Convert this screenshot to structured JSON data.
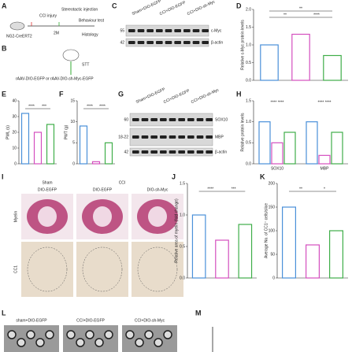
{
  "panels": [
    "A",
    "B",
    "C",
    "D",
    "E",
    "F",
    "G",
    "H",
    "I",
    "J",
    "K",
    "L",
    "M"
  ],
  "a": {
    "cci": "CCI injury",
    "inject": "Stereotactic injection",
    "mouse": "NG2-CreERT2",
    "time": "2M",
    "behav": "Behaviour test",
    "histo": "Histology"
  },
  "b": {
    "stt": "STT",
    "virus": "rAAV-DIO-EGFP or rAAV-DIO-sh-Myc-EGFP"
  },
  "c": {
    "lanes": [
      "Sham+DIO-EGFP",
      "CCI+DIO-EGFP",
      "CCI+DIO-sh-Myc"
    ],
    "markers": [
      "55",
      "42"
    ],
    "bands": [
      "c-Myc",
      "β-actin"
    ]
  },
  "g": {
    "lanes": [
      "Sham+DIO-EGFP",
      "CCI+DIO-EGFP",
      "CCI+DIO-sh-Myc"
    ],
    "markers": [
      "60",
      "18-22",
      "42"
    ],
    "bands": [
      "SOX10",
      "MBP",
      "β-actin"
    ]
  },
  "i": {
    "groups": [
      "Sham",
      "CCI"
    ],
    "cols": [
      "DIO-EGFP",
      "DIO-EGFP",
      "DIO-sh-Myc"
    ],
    "rows": [
      "Myelin",
      "CC1"
    ]
  },
  "l": {
    "cols": [
      "sham+DIO-EGFP",
      "CCI+DIO-EGFP",
      "CCI+DIO-sh-Myc"
    ]
  },
  "charts": [
    {
      "type": "bar",
      "ylabel": "Relative c-Myc protein levels",
      "ylim": [
        0,
        2
      ],
      "yticks": [
        {
          "value": 0,
          "label": "0.0"
        },
        {
          "value": 0.5,
          "label": "0.5"
        },
        {
          "value": 1,
          "label": "1.0"
        },
        {
          "value": 1.5,
          "label": "1.5"
        },
        {
          "value": 2,
          "label": "2.0"
        }
      ],
      "values": [
        1.0,
        1.3,
        0.7
      ],
      "colors": [
        "#4a90d9",
        "#d44fbf",
        "#3fae49"
      ],
      "sig": [
        {
          "text": "**",
          "from": 0,
          "to": 2
        },
        {
          "text": "**",
          "from": 0,
          "to": 1
        },
        {
          "text": "****",
          "from": 1,
          "to": 2
        }
      ]
    },
    {
      "type": "bar",
      "ylabel": "PWL (s)",
      "ylim": [
        0,
        40
      ],
      "yticks": [
        0,
        10,
        20,
        30,
        40
      ],
      "values": [
        32,
        20,
        25
      ],
      "colors": [
        "#4a90d9",
        "#d44fbf",
        "#3fae49"
      ],
      "sig": [
        {
          "text": "****",
          "from": 0,
          "to": 1
        },
        {
          "text": "***",
          "from": 1,
          "to": 2
        }
      ]
    },
    {
      "type": "bar",
      "ylabel": "PWT (g)",
      "ylim": [
        0,
        15
      ],
      "yticks": [
        0,
        5,
        10,
        15
      ],
      "values": [
        9,
        0.5,
        5
      ],
      "colors": [
        "#4a90d9",
        "#d44fbf",
        "#3fae49"
      ],
      "sig": [
        {
          "text": "****",
          "from": 0,
          "to": 1
        },
        {
          "text": "****",
          "from": 1,
          "to": 2
        }
      ]
    },
    {
      "type": "grouped",
      "ylabel": "Relative protein levels",
      "ylim": [
        0,
        1.5
      ],
      "yticks": [
        {
          "value": 0,
          "label": "0.0"
        },
        {
          "value": 0.5,
          "label": "0.5"
        },
        {
          "value": 1,
          "label": "1.0"
        },
        {
          "value": 1.5,
          "label": "1.5"
        }
      ],
      "categories": [
        "SOX10",
        "MBP"
      ],
      "series": [
        {
          "color": "#4a90d9",
          "values": [
            1.0,
            1.0
          ]
        },
        {
          "color": "#d44fbf",
          "values": [
            0.5,
            0.2
          ]
        },
        {
          "color": "#3fae49",
          "values": [
            0.75,
            0.75
          ]
        }
      ],
      "sig": [
        "**** ****",
        "**** ****"
      ]
    },
    {
      "type": "bar",
      "ylabel": "Relative area of myelin (fold change)",
      "ylim": [
        0,
        1.5
      ],
      "yticks": [
        {
          "value": 0,
          "label": "0.0"
        },
        {
          "value": 0.5,
          "label": "0.5"
        },
        {
          "value": 1,
          "label": "1.0"
        },
        {
          "value": 1.5,
          "label": "1.5"
        }
      ],
      "values": [
        1.0,
        0.6,
        0.85
      ],
      "colors": [
        "#4a90d9",
        "#d44fbf",
        "#3fae49"
      ],
      "sig": [
        {
          "text": "****",
          "from": 0,
          "to": 1
        },
        {
          "text": "***",
          "from": 1,
          "to": 2
        }
      ]
    },
    {
      "type": "bar",
      "ylabel": "Average No. of CC1⁺ cells/slice",
      "ylim": [
        0,
        200
      ],
      "yticks": [
        0,
        50,
        100,
        150,
        200
      ],
      "values": [
        150,
        70,
        100
      ],
      "colors": [
        "#4a90d9",
        "#d44fbf",
        "#3fae49"
      ],
      "sig": [
        {
          "text": "**",
          "from": 0,
          "to": 1
        },
        {
          "text": "*",
          "from": 1,
          "to": 2
        }
      ]
    }
  ]
}
